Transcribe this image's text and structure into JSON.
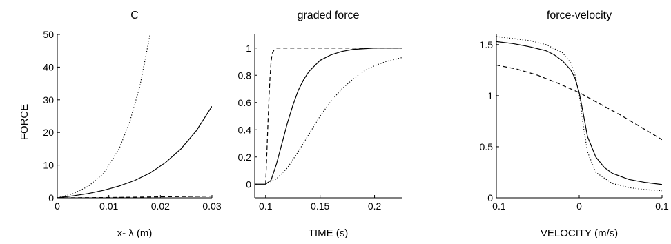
{
  "figure_ylabel": "FORCE",
  "chart_data": [
    {
      "type": "line",
      "title": "C",
      "xlabel": "x- λ (m)",
      "ylabel": "",
      "xlim": [
        0,
        0.03
      ],
      "ylim": [
        0,
        50
      ],
      "xticks": [
        0,
        0.01,
        0.02,
        0.03
      ],
      "xtick_labels": [
        "0",
        "0.01",
        "0.02",
        "0.03"
      ],
      "yticks": [
        0,
        10,
        20,
        30,
        40,
        50
      ],
      "ytick_labels": [
        "0",
        "10",
        "20",
        "30",
        "40",
        "50"
      ],
      "series": [
        {
          "style": "solid",
          "x": [
            0,
            0.003,
            0.006,
            0.009,
            0.012,
            0.015,
            0.018,
            0.021,
            0.024,
            0.027,
            0.03
          ],
          "y": [
            0,
            0.6,
            1.3,
            2.3,
            3.6,
            5.3,
            7.6,
            10.8,
            15,
            20.6,
            28
          ]
        },
        {
          "style": "dotted",
          "x": [
            0,
            0.003,
            0.006,
            0.009,
            0.012,
            0.014,
            0.016,
            0.018
          ],
          "y": [
            0,
            1.2,
            3.5,
            7.5,
            15,
            23,
            34,
            50
          ]
        },
        {
          "style": "dashed",
          "x": [
            0,
            0.01,
            0.02,
            0.03
          ],
          "y": [
            0,
            0.1,
            0.3,
            0.5
          ]
        }
      ]
    },
    {
      "type": "line",
      "title": "graded force",
      "xlabel": "TIME (s)",
      "ylabel": "",
      "xlim": [
        0.09,
        0.225
      ],
      "ylim": [
        -0.1,
        1.1
      ],
      "xticks": [
        0.1,
        0.15,
        0.2
      ],
      "xtick_labels": [
        "0.1",
        "0.15",
        "0.2"
      ],
      "yticks": [
        0,
        0.2,
        0.4,
        0.6,
        0.8,
        1
      ],
      "ytick_labels": [
        "0",
        "0.2",
        "0.4",
        "0.6",
        "0.8",
        "1"
      ],
      "series": [
        {
          "style": "solid",
          "x": [
            0.09,
            0.1,
            0.105,
            0.11,
            0.115,
            0.12,
            0.125,
            0.13,
            0.135,
            0.14,
            0.15,
            0.16,
            0.17,
            0.18,
            0.19,
            0.2,
            0.21,
            0.225
          ],
          "y": [
            0,
            0,
            0.03,
            0.15,
            0.3,
            0.45,
            0.58,
            0.69,
            0.77,
            0.83,
            0.91,
            0.95,
            0.975,
            0.99,
            0.995,
            1,
            1,
            1
          ]
        },
        {
          "style": "dotted",
          "x": [
            0.1,
            0.11,
            0.12,
            0.13,
            0.14,
            0.15,
            0.16,
            0.17,
            0.18,
            0.19,
            0.2,
            0.21,
            0.225
          ],
          "y": [
            0,
            0.04,
            0.12,
            0.24,
            0.37,
            0.5,
            0.61,
            0.7,
            0.77,
            0.83,
            0.87,
            0.9,
            0.93
          ]
        },
        {
          "style": "dashed",
          "x": [
            0.1,
            0.101,
            0.102,
            0.103,
            0.104,
            0.105,
            0.106,
            0.108,
            0.11,
            0.15,
            0.2,
            0.225
          ],
          "y": [
            0,
            0.2,
            0.42,
            0.62,
            0.78,
            0.9,
            0.96,
            0.99,
            1,
            1,
            1,
            1
          ]
        }
      ]
    },
    {
      "type": "line",
      "title": "force-velocity",
      "xlabel": "VELOCITY (m/s)",
      "ylabel": "",
      "xlim": [
        -0.1,
        0.1
      ],
      "ylim": [
        0,
        1.6
      ],
      "xticks": [
        -0.1,
        0,
        0.1
      ],
      "xtick_labels": [
        "–0.1",
        "0",
        "0.1"
      ],
      "yticks": [
        0,
        0.5,
        1,
        1.5
      ],
      "ytick_labels": [
        "0",
        "0.5",
        "1",
        "1.5"
      ],
      "series": [
        {
          "style": "solid",
          "x": [
            -0.1,
            -0.08,
            -0.06,
            -0.04,
            -0.03,
            -0.02,
            -0.01,
            -0.005,
            0,
            0.005,
            0.01,
            0.02,
            0.03,
            0.04,
            0.06,
            0.08,
            0.1
          ],
          "y": [
            1.53,
            1.51,
            1.48,
            1.44,
            1.4,
            1.34,
            1.25,
            1.17,
            1.03,
            0.82,
            0.6,
            0.4,
            0.3,
            0.24,
            0.18,
            0.15,
            0.13
          ]
        },
        {
          "style": "dotted",
          "x": [
            -0.1,
            -0.08,
            -0.06,
            -0.04,
            -0.02,
            -0.01,
            -0.005,
            0,
            0.005,
            0.01,
            0.02,
            0.04,
            0.06,
            0.08,
            0.1
          ],
          "y": [
            1.58,
            1.56,
            1.54,
            1.5,
            1.42,
            1.32,
            1.2,
            1.02,
            0.7,
            0.45,
            0.25,
            0.14,
            0.1,
            0.08,
            0.07
          ]
        },
        {
          "style": "dashed",
          "x": [
            -0.1,
            -0.075,
            -0.05,
            -0.025,
            0,
            0.025,
            0.05,
            0.075,
            0.1
          ],
          "y": [
            1.3,
            1.26,
            1.2,
            1.12,
            1.03,
            0.92,
            0.81,
            0.69,
            0.57
          ]
        }
      ]
    }
  ]
}
